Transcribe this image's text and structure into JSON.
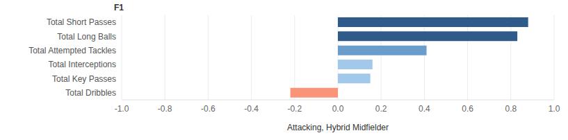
{
  "chart_data": {
    "type": "bar",
    "title": "F1",
    "orientation": "horizontal",
    "categories": [
      "Total Short Passes",
      "Total Long Balls",
      "Total Attempted Tackles",
      "Total Interceptions",
      "Total Key Passes",
      "Total Dribbles"
    ],
    "values": [
      0.88,
      0.83,
      0.41,
      0.16,
      0.15,
      -0.22
    ],
    "colors": [
      "#2f5b8a",
      "#2f5b8a",
      "#6a9ccc",
      "#a3c9ea",
      "#a3c9ea",
      "#fa9479"
    ],
    "x_label": "Attacking, Hybrid Midfielder",
    "xlim": [
      -1.0,
      1.0
    ],
    "xticks": [
      {
        "value": -1.0,
        "label": "-1.0"
      },
      -0.8,
      -0.6,
      -0.4,
      -0.2,
      {
        "value": 0,
        "label": "0.0"
      },
      0.2,
      0.4,
      0.6,
      0.8,
      {
        "value": 1.0,
        "label": "1.0"
      }
    ],
    "grid": true
  }
}
